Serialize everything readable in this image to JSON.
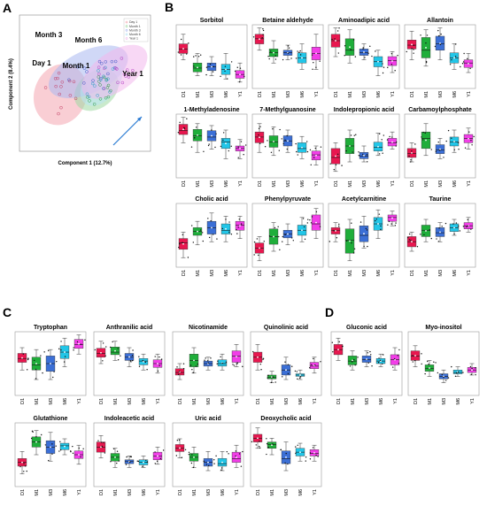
{
  "panels": {
    "A": "A",
    "B": "B",
    "C": "C",
    "D": "D"
  },
  "colors": {
    "D1": "#e8174f",
    "M1": "#1fae3a",
    "M3": "#3b6fd6",
    "M6": "#22c6e8",
    "Y1": "#f23ee8"
  },
  "chart_data": [
    {
      "type": "scatter",
      "panel": "A",
      "xlabel": "Component 1 (12.7%)",
      "ylabel": "Component 2 (8.4%)",
      "group_labels": [
        "Day 1",
        "Month 1",
        "Month 3",
        "Month 6",
        "Year 1"
      ],
      "legend": [
        "Day 1",
        "Month 1",
        "Month 3",
        "Month 6",
        "Year 1"
      ],
      "groups": [
        {
          "name": "Day 1",
          "color": "#f4a6b0",
          "center": [
            -1.5,
            -0.5
          ],
          "rx": 1.9,
          "ry": 1.6,
          "angle": -70
        },
        {
          "name": "Month 1",
          "color": "#9fd9a2",
          "center": [
            0.7,
            -0.3
          ],
          "rx": 1.5,
          "ry": 1.1,
          "angle": -40
        },
        {
          "name": "Month 3",
          "color": "#aab8f0",
          "center": [
            0.2,
            0.5
          ],
          "rx": 2.6,
          "ry": 1.3,
          "angle": -25
        },
        {
          "name": "Month 6",
          "color": "#b8e4f4",
          "center": [
            1.0,
            0.0
          ],
          "rx": 1.6,
          "ry": 1.0,
          "angle": -50
        },
        {
          "name": "Year 1",
          "color": "#f2b8ec",
          "center": [
            1.8,
            0.5
          ],
          "rx": 2.3,
          "ry": 1.2,
          "angle": -35
        }
      ],
      "xlim": [
        -4,
        4
      ],
      "ylim": [
        -3,
        3
      ]
    },
    {
      "type": "box",
      "panel": "B",
      "categories": [
        "D1",
        "M1",
        "M3",
        "M6",
        "Y1"
      ],
      "plots": [
        {
          "title": "Sorbitol",
          "boxes": [
            [
              0.45,
              0.55,
              0.62,
              0.7,
              0.85
            ],
            [
              0.2,
              0.26,
              0.32,
              0.4,
              0.55
            ],
            [
              0.2,
              0.28,
              0.34,
              0.4,
              0.5
            ],
            [
              0.15,
              0.22,
              0.3,
              0.38,
              0.55
            ],
            [
              0.1,
              0.16,
              0.22,
              0.28,
              0.4
            ]
          ]
        },
        {
          "title": "Betaine aldehyde",
          "boxes": [
            [
              0.6,
              0.7,
              0.78,
              0.85,
              0.95
            ],
            [
              0.4,
              0.5,
              0.56,
              0.62,
              0.75
            ],
            [
              0.45,
              0.52,
              0.56,
              0.6,
              0.68
            ],
            [
              0.3,
              0.4,
              0.48,
              0.56,
              0.7
            ],
            [
              0.3,
              0.45,
              0.55,
              0.65,
              0.85
            ]
          ]
        },
        {
          "title": "Aminoadipic acid",
          "boxes": [
            [
              0.5,
              0.65,
              0.75,
              0.85,
              0.95
            ],
            [
              0.4,
              0.52,
              0.6,
              0.78,
              0.92
            ],
            [
              0.45,
              0.52,
              0.56,
              0.62,
              0.7
            ],
            [
              0.2,
              0.34,
              0.42,
              0.5,
              0.6
            ],
            [
              0.25,
              0.36,
              0.44,
              0.5,
              0.58
            ]
          ]
        },
        {
          "title": "Allantoin",
          "boxes": [
            [
              0.45,
              0.62,
              0.68,
              0.76,
              0.9
            ],
            [
              0.35,
              0.48,
              0.6,
              0.8,
              0.92
            ],
            [
              0.45,
              0.6,
              0.7,
              0.82,
              0.95
            ],
            [
              0.3,
              0.4,
              0.48,
              0.56,
              0.7
            ],
            [
              0.25,
              0.33,
              0.4,
              0.45,
              0.55
            ]
          ]
        },
        {
          "title": "1-Methyladenosine",
          "boxes": [
            [
              0.55,
              0.68,
              0.74,
              0.84,
              0.95
            ],
            [
              0.4,
              0.58,
              0.66,
              0.76,
              0.85
            ],
            [
              0.45,
              0.58,
              0.64,
              0.74,
              0.82
            ],
            [
              0.3,
              0.46,
              0.56,
              0.62,
              0.75
            ],
            [
              0.3,
              0.42,
              0.46,
              0.5,
              0.6
            ]
          ]
        },
        {
          "title": "7-Methylguanosine",
          "boxes": [
            [
              0.4,
              0.55,
              0.64,
              0.72,
              0.85
            ],
            [
              0.35,
              0.48,
              0.56,
              0.66,
              0.8
            ],
            [
              0.4,
              0.5,
              0.58,
              0.66,
              0.75
            ],
            [
              0.3,
              0.4,
              0.46,
              0.55,
              0.65
            ],
            [
              0.2,
              0.28,
              0.36,
              0.42,
              0.5
            ]
          ]
        },
        {
          "title": "Indolepropionic acid",
          "boxes": [
            [
              0.1,
              0.22,
              0.32,
              0.46,
              0.55
            ],
            [
              0.25,
              0.38,
              0.5,
              0.62,
              0.75
            ],
            [
              0.25,
              0.3,
              0.34,
              0.4,
              0.5
            ],
            [
              0.35,
              0.42,
              0.48,
              0.56,
              0.7
            ],
            [
              0.45,
              0.5,
              0.55,
              0.62,
              0.72
            ]
          ]
        },
        {
          "title": "Carbamoylphosphate",
          "boxes": [
            [
              0.25,
              0.32,
              0.38,
              0.46,
              0.55
            ],
            [
              0.35,
              0.46,
              0.62,
              0.72,
              0.85
            ],
            [
              0.3,
              0.38,
              0.44,
              0.52,
              0.62
            ],
            [
              0.4,
              0.5,
              0.56,
              0.64,
              0.75
            ],
            [
              0.45,
              0.55,
              0.62,
              0.68,
              0.78
            ]
          ]
        },
        {
          "title": "Cholic acid",
          "boxes": [
            [
              0.15,
              0.28,
              0.38,
              0.45,
              0.55
            ],
            [
              0.35,
              0.5,
              0.56,
              0.62,
              0.72
            ],
            [
              0.4,
              0.52,
              0.62,
              0.72,
              0.85
            ],
            [
              0.4,
              0.52,
              0.58,
              0.68,
              0.8
            ],
            [
              0.45,
              0.58,
              0.66,
              0.72,
              0.8
            ]
          ]
        },
        {
          "title": "Phenylpyruvate",
          "boxes": [
            [
              0.1,
              0.22,
              0.3,
              0.38,
              0.48
            ],
            [
              0.25,
              0.36,
              0.48,
              0.6,
              0.7
            ],
            [
              0.35,
              0.46,
              0.52,
              0.58,
              0.68
            ],
            [
              0.4,
              0.5,
              0.58,
              0.66,
              0.78
            ],
            [
              0.45,
              0.58,
              0.68,
              0.82,
              0.92
            ]
          ]
        },
        {
          "title": "Acetylcarnitine",
          "boxes": [
            [
              0.4,
              0.52,
              0.58,
              0.62,
              0.7
            ],
            [
              0.1,
              0.22,
              0.42,
              0.6,
              0.75
            ],
            [
              0.3,
              0.4,
              0.5,
              0.65,
              0.8
            ],
            [
              0.45,
              0.58,
              0.68,
              0.78,
              0.9
            ],
            [
              0.65,
              0.72,
              0.78,
              0.82,
              0.88
            ]
          ]
        },
        {
          "title": "Taurine",
          "boxes": [
            [
              0.25,
              0.32,
              0.4,
              0.48,
              0.55
            ],
            [
              0.4,
              0.48,
              0.58,
              0.66,
              0.75
            ],
            [
              0.4,
              0.48,
              0.54,
              0.62,
              0.7
            ],
            [
              0.5,
              0.56,
              0.62,
              0.68,
              0.75
            ],
            [
              0.55,
              0.6,
              0.65,
              0.7,
              0.78
            ]
          ]
        }
      ]
    },
    {
      "type": "box",
      "panel": "C",
      "categories": [
        "D1",
        "M1",
        "M3",
        "M6",
        "Y1"
      ],
      "plots": [
        {
          "title": "Tryptophan",
          "boxes": [
            [
              0.4,
              0.52,
              0.58,
              0.66,
              0.75
            ],
            [
              0.25,
              0.4,
              0.48,
              0.6,
              0.72
            ],
            [
              0.25,
              0.38,
              0.5,
              0.62,
              0.72
            ],
            [
              0.45,
              0.58,
              0.68,
              0.78,
              0.9
            ],
            [
              0.65,
              0.74,
              0.8,
              0.88,
              0.95
            ]
          ]
        },
        {
          "title": "Anthranilic acid",
          "boxes": [
            [
              0.5,
              0.6,
              0.66,
              0.74,
              0.85
            ],
            [
              0.55,
              0.64,
              0.68,
              0.76,
              0.85
            ],
            [
              0.45,
              0.55,
              0.6,
              0.66,
              0.75
            ],
            [
              0.4,
              0.48,
              0.54,
              0.58,
              0.65
            ],
            [
              0.35,
              0.44,
              0.5,
              0.56,
              0.65
            ]
          ]
        },
        {
          "title": "Nicotinamide",
          "boxes": [
            [
              0.25,
              0.32,
              0.36,
              0.42,
              0.5
            ],
            [
              0.35,
              0.45,
              0.55,
              0.65,
              0.75
            ],
            [
              0.4,
              0.46,
              0.5,
              0.54,
              0.6
            ],
            [
              0.4,
              0.46,
              0.5,
              0.56,
              0.65
            ],
            [
              0.45,
              0.52,
              0.62,
              0.7,
              0.8
            ]
          ]
        },
        {
          "title": "Quinolinic acid",
          "boxes": [
            [
              0.4,
              0.52,
              0.6,
              0.68,
              0.8
            ],
            [
              0.2,
              0.26,
              0.28,
              0.32,
              0.38
            ],
            [
              0.25,
              0.32,
              0.4,
              0.48,
              0.6
            ],
            [
              0.25,
              0.3,
              0.32,
              0.34,
              0.4
            ],
            [
              0.35,
              0.42,
              0.46,
              0.52,
              0.6
            ]
          ]
        },
        {
          "title": "Glutathione",
          "boxes": [
            [
              0.2,
              0.32,
              0.38,
              0.44,
              0.55
            ],
            [
              0.5,
              0.62,
              0.7,
              0.78,
              0.88
            ],
            [
              0.4,
              0.52,
              0.62,
              0.72,
              0.85
            ],
            [
              0.5,
              0.58,
              0.64,
              0.68,
              0.75
            ],
            [
              0.35,
              0.44,
              0.5,
              0.56,
              0.65
            ]
          ]
        },
        {
          "title": "Indoleacetic acid",
          "boxes": [
            [
              0.45,
              0.54,
              0.62,
              0.7,
              0.8
            ],
            [
              0.3,
              0.4,
              0.46,
              0.52,
              0.6
            ],
            [
              0.3,
              0.36,
              0.4,
              0.42,
              0.48
            ],
            [
              0.3,
              0.34,
              0.38,
              0.42,
              0.48
            ],
            [
              0.35,
              0.42,
              0.48,
              0.54,
              0.62
            ]
          ]
        },
        {
          "title": "Uric acid",
          "boxes": [
            [
              0.45,
              0.55,
              0.6,
              0.66,
              0.75
            ],
            [
              0.3,
              0.4,
              0.46,
              0.52,
              0.62
            ],
            [
              0.25,
              0.32,
              0.38,
              0.44,
              0.55
            ],
            [
              0.25,
              0.32,
              0.36,
              0.44,
              0.55
            ],
            [
              0.3,
              0.38,
              0.44,
              0.54,
              0.65
            ]
          ]
        },
        {
          "title": "Deoxycholic acid",
          "boxes": [
            [
              0.6,
              0.7,
              0.76,
              0.82,
              0.92
            ],
            [
              0.5,
              0.6,
              0.66,
              0.7,
              0.76
            ],
            [
              0.25,
              0.36,
              0.44,
              0.56,
              0.7
            ],
            [
              0.4,
              0.48,
              0.54,
              0.6,
              0.68
            ],
            [
              0.4,
              0.48,
              0.52,
              0.58,
              0.65
            ]
          ]
        }
      ]
    },
    {
      "type": "box",
      "panel": "D",
      "categories": [
        "D1",
        "M1",
        "M3",
        "M6",
        "Y1"
      ],
      "plots": [
        {
          "title": "Gluconic acid",
          "boxes": [
            [
              0.55,
              0.64,
              0.72,
              0.8,
              0.9
            ],
            [
              0.4,
              0.48,
              0.54,
              0.62,
              0.7
            ],
            [
              0.45,
              0.52,
              0.56,
              0.62,
              0.7
            ],
            [
              0.45,
              0.5,
              0.54,
              0.58,
              0.65
            ],
            [
              0.4,
              0.48,
              0.56,
              0.64,
              0.75
            ]
          ]
        },
        {
          "title": "Myo-inositol",
          "boxes": [
            [
              0.45,
              0.55,
              0.62,
              0.7,
              0.78
            ],
            [
              0.3,
              0.38,
              0.42,
              0.48,
              0.55
            ],
            [
              0.2,
              0.26,
              0.3,
              0.34,
              0.4
            ],
            [
              0.3,
              0.34,
              0.36,
              0.4,
              0.45
            ],
            [
              0.32,
              0.36,
              0.4,
              0.44,
              0.5
            ]
          ]
        }
      ]
    }
  ]
}
